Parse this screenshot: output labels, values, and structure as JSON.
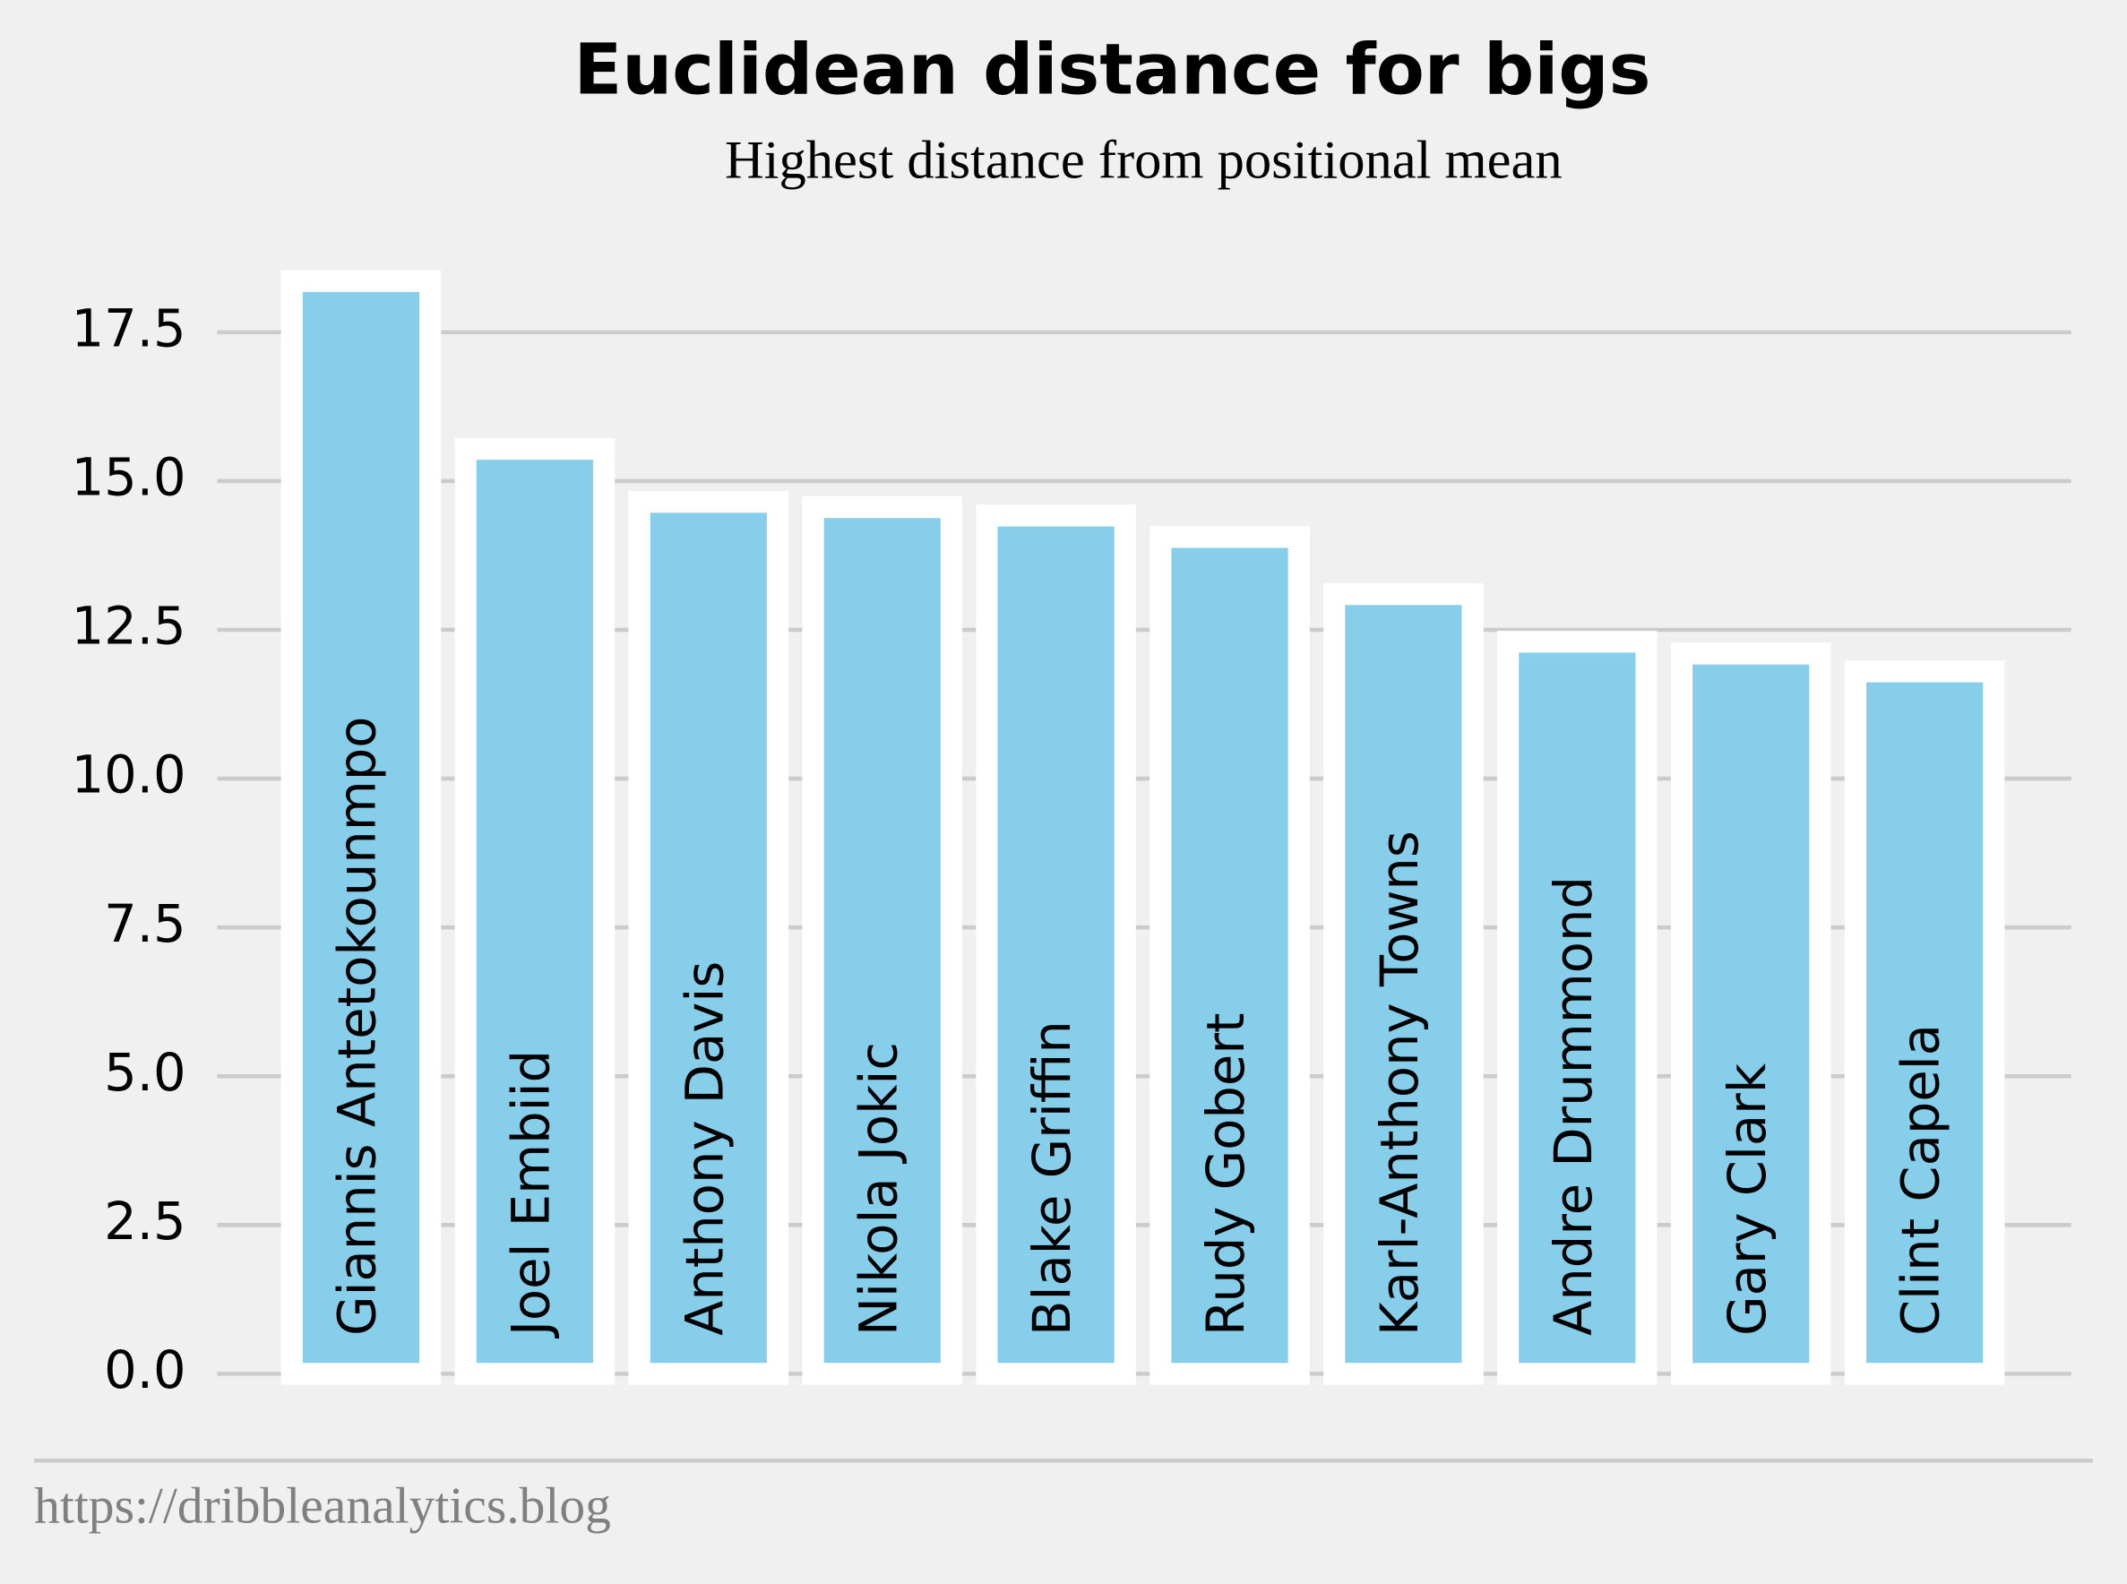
{
  "chart_data": {
    "type": "bar",
    "title": "Euclidean distance for bigs",
    "subtitle": "Highest distance from positional mean",
    "footer": "https://dribbleanalytics.blog",
    "categories": [
      "Giannis Antetokounmpo",
      "Joel Embiid",
      "Anthony Davis",
      "Nikola Jokic",
      "Blake Griffin",
      "Rudy Gobert",
      "Karl-Anthony Towns",
      "Andre Drummond",
      "Gary Clark",
      "Clint Capela"
    ],
    "values": [
      18.36,
      15.54,
      14.65,
      14.56,
      14.42,
      14.06,
      13.1,
      12.3,
      12.1,
      11.8
    ],
    "color": "#87ceeb",
    "ylim": [
      0,
      19
    ],
    "yticks": [
      {
        "value": 0,
        "label": "0.0"
      },
      2.5,
      {
        "value": 5,
        "label": "5.0"
      },
      7.5,
      {
        "value": 10,
        "label": "10.0"
      },
      12.5,
      {
        "value": 15,
        "label": "15.0"
      },
      17.5
    ],
    "grid": true
  }
}
